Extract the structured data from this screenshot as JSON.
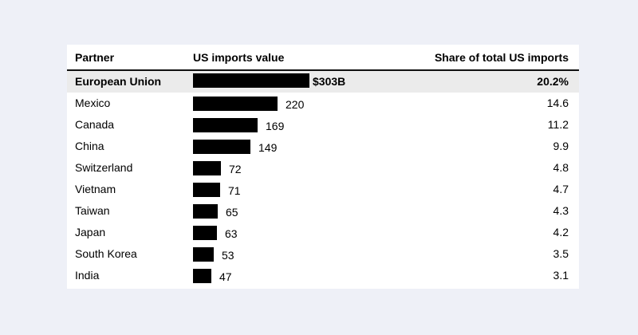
{
  "colors": {
    "background": "#eef0f7",
    "card": "#ffffff",
    "bar": "#000000",
    "highlight_row": "#ebebeb"
  },
  "headers": {
    "partner": "Partner",
    "value": "US imports value",
    "share": "Share of total US imports"
  },
  "chart_data": {
    "type": "table",
    "columns": [
      "Partner",
      "US imports value",
      "Share of total US imports"
    ],
    "categories": [
      "European Union",
      "Mexico",
      "Canada",
      "China",
      "Switzerland",
      "Vietnam",
      "Taiwan",
      "Japan",
      "South Korea",
      "India"
    ],
    "values": [
      303,
      220,
      169,
      149,
      72,
      71,
      65,
      63,
      53,
      47
    ],
    "value_labels": [
      "$303B",
      "220",
      "169",
      "149",
      "72",
      "71",
      "65",
      "63",
      "53",
      "47"
    ],
    "shares": [
      20.2,
      14.6,
      11.2,
      9.9,
      4.8,
      4.7,
      4.3,
      4.2,
      3.5,
      3.1
    ],
    "share_labels": [
      "20.2%",
      "14.6",
      "11.2",
      "9.9",
      "4.8",
      "4.7",
      "4.3",
      "4.2",
      "3.5",
      "3.1"
    ],
    "highlighted_row": 0
  }
}
